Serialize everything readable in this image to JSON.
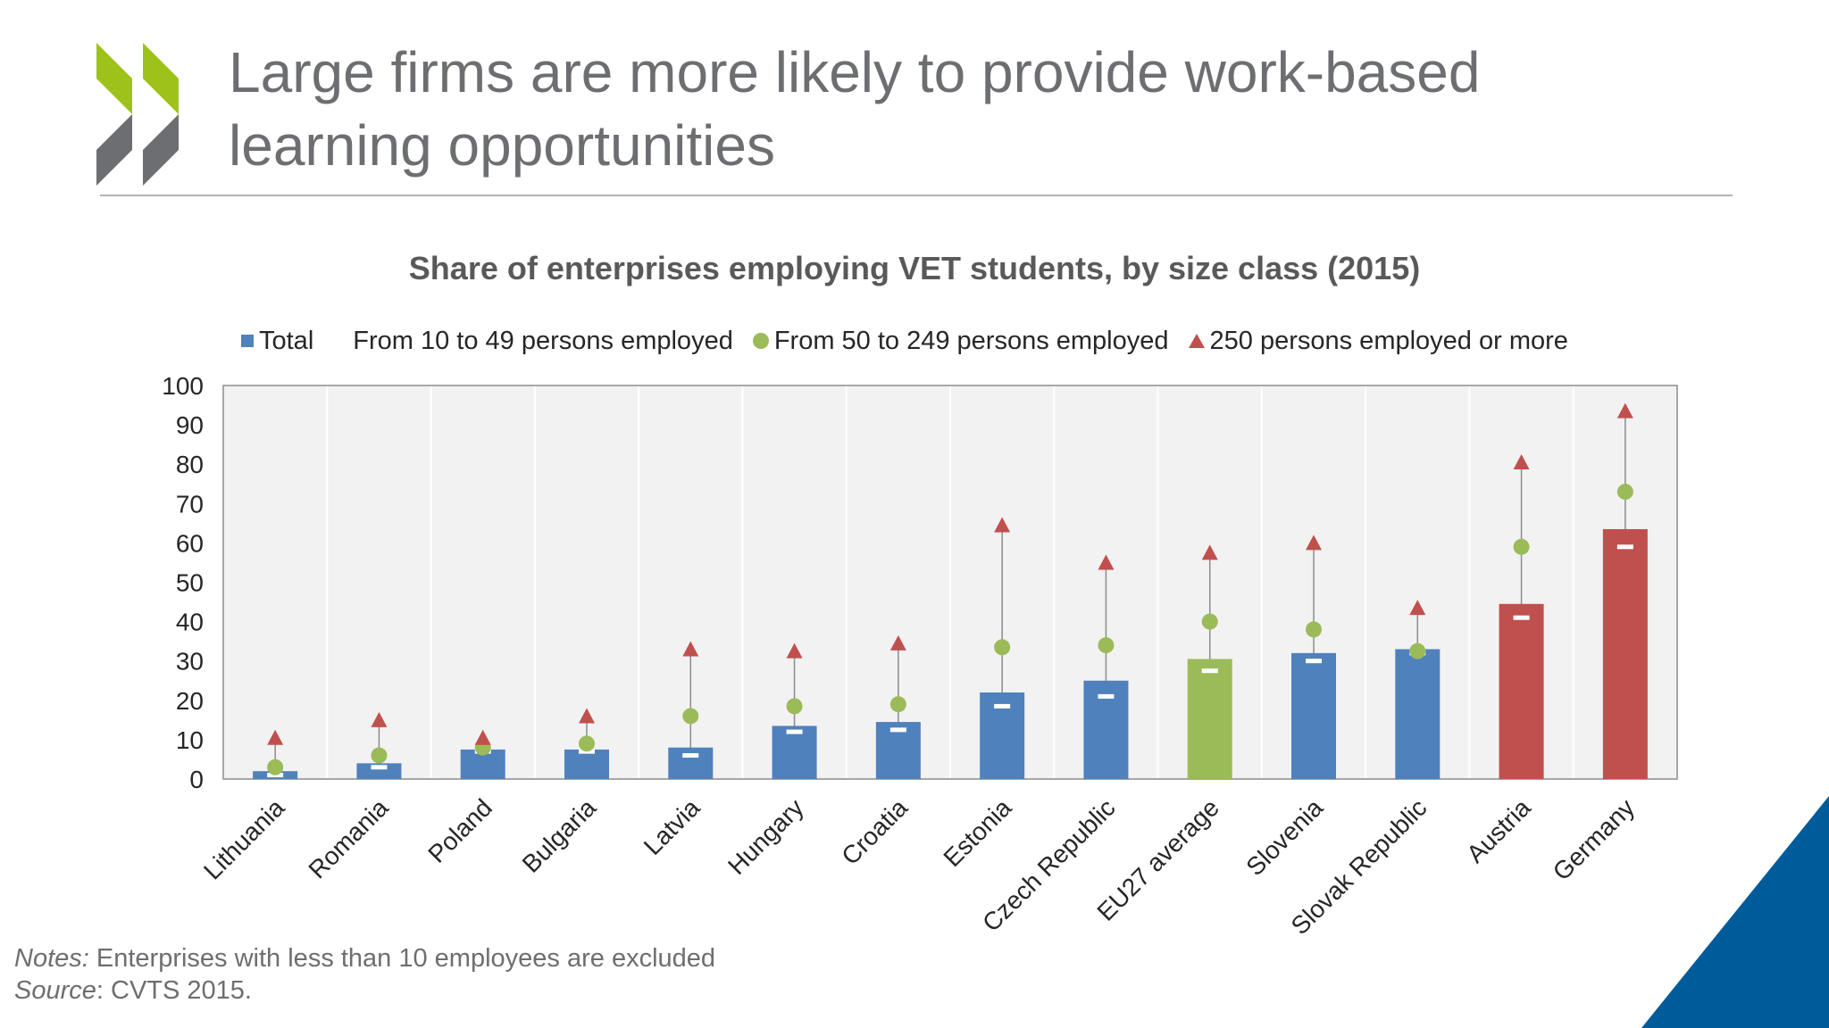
{
  "slide": {
    "title_line1": "Large firms are more likely to provide work-based",
    "title_line2": "learning opportunities"
  },
  "notes": {
    "notes_label": "Notes:",
    "notes_text": " Enterprises with less than 10 employees are excluded",
    "source_label": "Source",
    "source_text": ": CVTS 2015."
  },
  "colors": {
    "total": "#4f81bd",
    "eu_average": "#9bbb59",
    "highlight": "#c0504d",
    "circle": "#9bbb59",
    "triangle": "#c0504d",
    "logo_green": "#9dc31b",
    "logo_grey": "#6d6e71",
    "corner_blue": "#005b9a"
  },
  "icons": {
    "logo": "oecd-chevron-logo",
    "corner": "blue-corner-triangle"
  },
  "chart_data": {
    "type": "bar",
    "title": "Share of enterprises employing VET students, by size class (2015)",
    "xlabel": "",
    "ylabel": "",
    "ylim": [
      0,
      100
    ],
    "yticks": [
      0,
      10,
      20,
      30,
      40,
      50,
      60,
      70,
      80,
      90,
      100
    ],
    "grid": "vertical",
    "legend_position": "top",
    "categories": [
      "Lithuania",
      "Romania",
      "Poland",
      "Bulgaria",
      "Latvia",
      "Hungary",
      "Croatia",
      "Estonia",
      "Czech Republic",
      "EU27 average",
      "Slovenia",
      "Slovak Republic",
      "Austria",
      "Germany"
    ],
    "series": [
      {
        "name": "Total",
        "marker": "bar",
        "values": [
          2,
          4,
          7.5,
          7.5,
          8,
          13.5,
          14.5,
          22,
          25,
          30.5,
          32,
          33,
          44.5,
          63.5
        ]
      },
      {
        "name": "From 10 to 49 persons employed",
        "marker": "dash",
        "values": [
          1,
          3,
          7,
          7,
          6,
          12,
          12.5,
          18.5,
          21,
          27.5,
          30,
          32,
          41,
          59
        ]
      },
      {
        "name": "From 50 to 249 persons employed",
        "marker": "circle",
        "values": [
          3,
          6,
          8,
          9,
          16,
          18.5,
          19,
          33.5,
          34,
          40,
          38,
          32.5,
          59,
          73
        ]
      },
      {
        "name": "250 persons employed or more",
        "marker": "triangle",
        "values": [
          10.5,
          15,
          10.5,
          16,
          33,
          32.5,
          34.5,
          64.5,
          55,
          57.5,
          60,
          43.5,
          80.5,
          93.5
        ]
      }
    ],
    "bar_color_groups": [
      "total",
      "total",
      "total",
      "total",
      "total",
      "total",
      "total",
      "total",
      "total",
      "eu_average",
      "total",
      "total",
      "highlight",
      "highlight"
    ]
  }
}
